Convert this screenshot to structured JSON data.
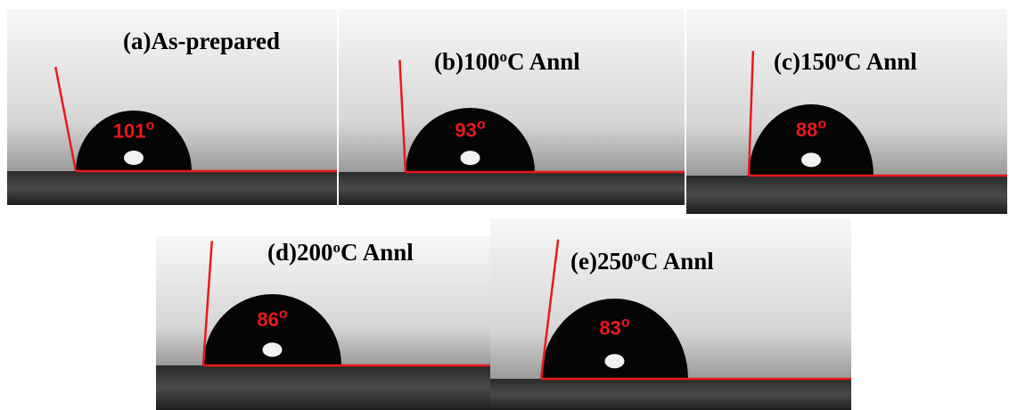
{
  "panels": [
    {
      "label": {
        "prefix": "(a)As-prepared",
        "sup": "",
        "suffix": ""
      },
      "angle": {
        "value": 101,
        "unit": "o"
      }
    },
    {
      "label": {
        "prefix": "(b)100",
        "sup": "o",
        "suffix": "C Annl"
      },
      "angle": {
        "value": 93,
        "unit": "o"
      }
    },
    {
      "label": {
        "prefix": "(c)150",
        "sup": "o",
        "suffix": "C Annl"
      },
      "angle": {
        "value": 88,
        "unit": "o"
      }
    },
    {
      "label": {
        "prefix": "(d)200",
        "sup": "o",
        "suffix": "C Annl"
      },
      "angle": {
        "value": 86,
        "unit": "o"
      }
    },
    {
      "label": {
        "prefix": "(e)250",
        "sup": "o",
        "suffix": "C Annl"
      },
      "angle": {
        "value": 83,
        "unit": "o"
      }
    }
  ]
}
